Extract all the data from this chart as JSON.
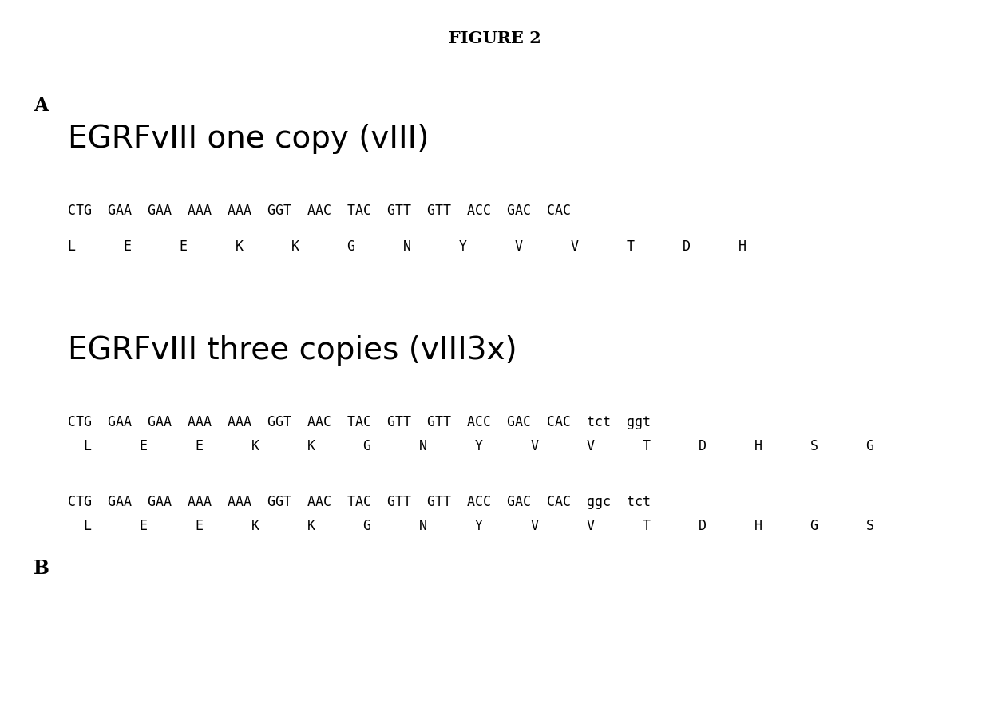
{
  "title": "FIGURE 2",
  "title_fontsize": 15,
  "title_fontweight": "bold",
  "background_color": "#ffffff",
  "label_A": "A",
  "label_B": "B",
  "section1_heading": "EGRFvIII one copy (vIII)",
  "section1_dna": "CTG  GAA  GAA  AAA  AAA  GGT  AAC  TAC  GTT  GTT  ACC  GAC  CAC",
  "section1_aa": "L      E      E      K      K      G      N      Y      V      V      T      D      H",
  "section2_heading": "EGRFvIII three copies (vIII3x)",
  "section2_dna1": "CTG  GAA  GAA  AAA  AAA  GGT  AAC  TAC  GTT  GTT  ACC  GAC  CAC  tct  ggt",
  "section2_aa1": "  L      E      E      K      K      G      N      Y      V      V      T      D      H      S      G",
  "section2_dna2": "CTG  GAA  GAA  AAA  AAA  GGT  AAC  TAC  GTT  GTT  ACC  GAC  CAC  ggc  tct",
  "section2_aa2": "  L      E      E      K      K      G      N      Y      V      V      T      D      H      G      S",
  "mono_fontsize": 12,
  "heading_fontsize": 28,
  "label_fontsize": 17
}
